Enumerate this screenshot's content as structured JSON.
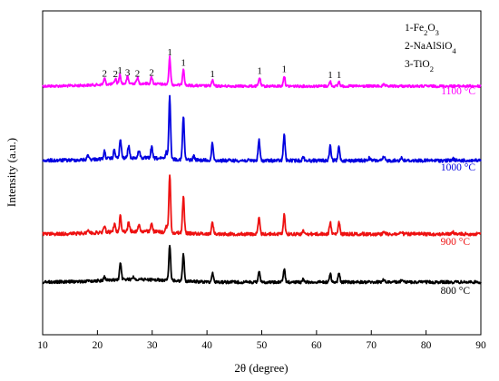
{
  "chart_data": {
    "type": "line",
    "xlabel": "2θ (degree)",
    "ylabel": "Intensity (a.u.)",
    "xlim": [
      10,
      90
    ],
    "x_ticks": [
      10,
      20,
      30,
      40,
      50,
      60,
      70,
      80,
      90
    ],
    "y_ticks_shown": false,
    "grid": false,
    "legend_position": "top-right",
    "legend": [
      {
        "label": "1-Fe2O3",
        "prefix": "1-Fe",
        "sub1": "2",
        "mid": "O",
        "sub2": "3"
      },
      {
        "label": "2-NaAlSiO4",
        "prefix": "2-NaAlSiO",
        "sub1": "4"
      },
      {
        "label": "3-TiO2",
        "prefix": "3-TiO",
        "sub1": "2"
      }
    ],
    "series": [
      {
        "name": "1100 °C",
        "color": "#ff00ff",
        "peaks": [
          {
            "x": 21.3,
            "h": 0.22
          },
          {
            "x": 23.3,
            "h": 0.2
          },
          {
            "x": 24.1,
            "h": 0.33
          },
          {
            "x": 25.5,
            "h": 0.25
          },
          {
            "x": 27.3,
            "h": 0.22
          },
          {
            "x": 29.9,
            "h": 0.25
          },
          {
            "x": 33.2,
            "h": 1.0
          },
          {
            "x": 35.7,
            "h": 0.62
          },
          {
            "x": 41.0,
            "h": 0.2
          },
          {
            "x": 49.6,
            "h": 0.32
          },
          {
            "x": 54.1,
            "h": 0.38
          },
          {
            "x": 62.5,
            "h": 0.17
          },
          {
            "x": 64.1,
            "h": 0.17
          },
          {
            "x": 72.3,
            "h": 0.05
          }
        ]
      },
      {
        "name": "1000 °C",
        "color": "#0000e0",
        "peaks": [
          {
            "x": 18.3,
            "h": 0.08
          },
          {
            "x": 21.3,
            "h": 0.12
          },
          {
            "x": 23.1,
            "h": 0.14
          },
          {
            "x": 24.2,
            "h": 0.3
          },
          {
            "x": 25.7,
            "h": 0.2
          },
          {
            "x": 27.6,
            "h": 0.13
          },
          {
            "x": 29.9,
            "h": 0.18
          },
          {
            "x": 32.6,
            "h": 0.11
          },
          {
            "x": 33.2,
            "h": 1.0
          },
          {
            "x": 35.7,
            "h": 0.7
          },
          {
            "x": 37.6,
            "h": 0.06
          },
          {
            "x": 41.0,
            "h": 0.28
          },
          {
            "x": 49.5,
            "h": 0.33
          },
          {
            "x": 54.1,
            "h": 0.42
          },
          {
            "x": 57.6,
            "h": 0.06
          },
          {
            "x": 62.5,
            "h": 0.23
          },
          {
            "x": 64.1,
            "h": 0.23
          },
          {
            "x": 69.6,
            "h": 0.04
          },
          {
            "x": 72.3,
            "h": 0.06
          },
          {
            "x": 75.5,
            "h": 0.05
          },
          {
            "x": 85.0,
            "h": 0.03
          }
        ]
      },
      {
        "name": "900 °C",
        "color": "#ee1111",
        "peaks": [
          {
            "x": 18.3,
            "h": 0.07
          },
          {
            "x": 21.3,
            "h": 0.11
          },
          {
            "x": 23.1,
            "h": 0.14
          },
          {
            "x": 24.2,
            "h": 0.28
          },
          {
            "x": 25.7,
            "h": 0.16
          },
          {
            "x": 27.6,
            "h": 0.12
          },
          {
            "x": 29.9,
            "h": 0.16
          },
          {
            "x": 32.6,
            "h": 0.1
          },
          {
            "x": 33.2,
            "h": 1.0
          },
          {
            "x": 35.7,
            "h": 0.64
          },
          {
            "x": 41.0,
            "h": 0.2
          },
          {
            "x": 49.5,
            "h": 0.28
          },
          {
            "x": 54.1,
            "h": 0.34
          },
          {
            "x": 57.6,
            "h": 0.05
          },
          {
            "x": 62.5,
            "h": 0.2
          },
          {
            "x": 64.1,
            "h": 0.2
          },
          {
            "x": 72.3,
            "h": 0.05
          },
          {
            "x": 75.5,
            "h": 0.04
          },
          {
            "x": 85.0,
            "h": 0.03
          }
        ]
      },
      {
        "name": "800 °C",
        "color": "#000000",
        "peaks": [
          {
            "x": 21.3,
            "h": 0.1
          },
          {
            "x": 24.2,
            "h": 0.45
          },
          {
            "x": 26.6,
            "h": 0.07
          },
          {
            "x": 33.2,
            "h": 1.0
          },
          {
            "x": 35.7,
            "h": 0.75
          },
          {
            "x": 41.0,
            "h": 0.25
          },
          {
            "x": 49.5,
            "h": 0.3
          },
          {
            "x": 54.1,
            "h": 0.37
          },
          {
            "x": 57.6,
            "h": 0.08
          },
          {
            "x": 62.5,
            "h": 0.25
          },
          {
            "x": 64.1,
            "h": 0.25
          },
          {
            "x": 72.3,
            "h": 0.08
          },
          {
            "x": 75.5,
            "h": 0.05
          }
        ]
      }
    ],
    "annotations": [
      {
        "text": "2",
        "x": 21.3
      },
      {
        "text": "2",
        "x": 23.3
      },
      {
        "text": "1",
        "x": 24.1
      },
      {
        "text": "3",
        "x": 25.5
      },
      {
        "text": "2",
        "x": 27.3
      },
      {
        "text": "2",
        "x": 29.9
      },
      {
        "text": "1",
        "x": 33.2
      },
      {
        "text": "1",
        "x": 35.7
      },
      {
        "text": "1",
        "x": 41.0
      },
      {
        "text": "1",
        "x": 49.6
      },
      {
        "text": "1",
        "x": 54.1
      },
      {
        "text": "1",
        "x": 62.5
      },
      {
        "text": "1",
        "x": 64.1
      }
    ]
  }
}
